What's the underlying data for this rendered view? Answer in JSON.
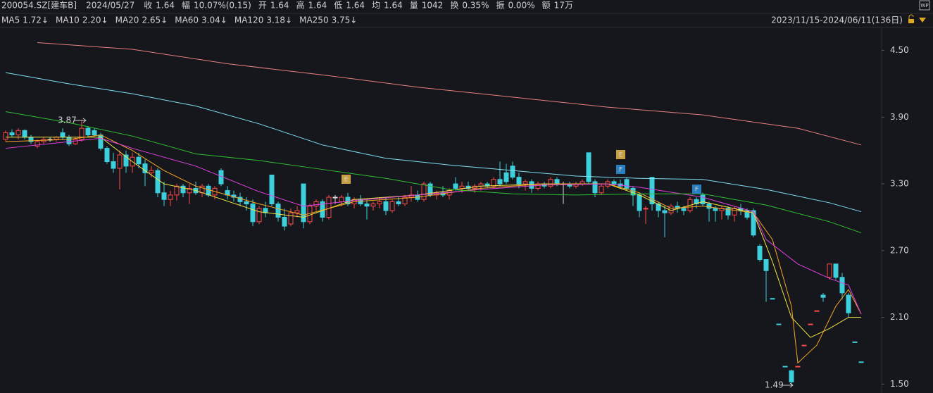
{
  "header": {
    "items": [
      {
        "label": "200054.SZ[建车B]"
      },
      {
        "label": "2024/05/27"
      },
      {
        "label": "收",
        "value": "1.64",
        "color": "#ff4a4a"
      },
      {
        "label": "幅",
        "value": "10.07%(0.15)",
        "color": "#ff4a4a"
      },
      {
        "label": "开",
        "value": "1.64",
        "color": "#ff4a4a"
      },
      {
        "label": "高",
        "value": "1.64",
        "color": "#ff4a4a"
      },
      {
        "label": "低",
        "value": "1.64",
        "color": "#ff4a4a"
      },
      {
        "label": "均",
        "value": "1.64",
        "color": "#ff4a4a"
      },
      {
        "label": "量",
        "value": "1042",
        "color": "#d8d8d8"
      },
      {
        "label": "换",
        "value": "0.35%",
        "color": "#d8d8d8"
      },
      {
        "label": "振",
        "value": "0.00%",
        "color": "#d8d8d8"
      },
      {
        "label": "额",
        "value": "17万",
        "color": "#d8d8d8"
      }
    ],
    "range": "2023/11/15-2024/06/11(136日)"
  },
  "chart_data": {
    "type": "candlestick",
    "ylim": [
      1.42,
      4.7
    ],
    "yticks": [
      {
        "value": 4.5,
        "label": "4.50"
      },
      {
        "value": 3.9,
        "label": "3.90"
      },
      {
        "value": 3.3,
        "label": "3.30"
      },
      {
        "value": 2.7,
        "label": "2.70"
      },
      {
        "value": 2.1,
        "label": "2.10"
      },
      {
        "value": 1.5,
        "label": "1.50"
      }
    ],
    "up_color": "#ff4a4a",
    "down_color": "#3dd0dc",
    "flat_color": "#e0e0e0",
    "ohlc": [
      [
        3.7,
        3.78,
        3.68,
        3.76
      ],
      [
        3.76,
        3.79,
        3.72,
        3.74
      ],
      [
        3.74,
        3.8,
        3.7,
        3.78
      ],
      [
        3.78,
        3.79,
        3.7,
        3.72
      ],
      [
        3.72,
        3.74,
        3.66,
        3.68
      ],
      [
        3.64,
        3.7,
        3.62,
        3.68
      ],
      [
        3.68,
        3.72,
        3.66,
        3.7
      ],
      [
        3.7,
        3.72,
        3.68,
        3.7
      ],
      [
        3.7,
        3.73,
        3.68,
        3.72
      ],
      [
        3.76,
        3.8,
        3.7,
        3.72
      ],
      [
        3.72,
        3.74,
        3.64,
        3.66
      ],
      [
        3.66,
        3.72,
        3.65,
        3.7
      ],
      [
        3.7,
        3.87,
        3.68,
        3.8
      ],
      [
        3.8,
        3.82,
        3.72,
        3.74
      ],
      [
        3.78,
        3.8,
        3.72,
        3.74
      ],
      [
        3.74,
        3.76,
        3.6,
        3.62
      ],
      [
        3.62,
        3.64,
        3.48,
        3.5
      ],
      [
        3.5,
        3.58,
        3.4,
        3.44
      ],
      [
        3.44,
        3.6,
        3.25,
        3.56
      ],
      [
        3.56,
        3.6,
        3.4,
        3.46
      ],
      [
        3.46,
        3.58,
        3.4,
        3.54
      ],
      [
        3.54,
        3.58,
        3.44,
        3.48
      ],
      [
        3.48,
        3.52,
        3.28,
        3.4
      ],
      [
        3.4,
        3.46,
        3.36,
        3.42
      ],
      [
        3.42,
        3.44,
        3.18,
        3.22
      ],
      [
        3.22,
        3.32,
        3.1,
        3.16
      ],
      [
        3.16,
        3.24,
        3.1,
        3.2
      ],
      [
        3.2,
        3.3,
        3.15,
        3.28
      ],
      [
        3.28,
        3.3,
        3.18,
        3.22
      ],
      [
        3.22,
        3.3,
        3.12,
        3.26
      ],
      [
        3.26,
        3.32,
        3.2,
        3.22
      ],
      [
        3.22,
        3.3,
        3.18,
        3.28
      ],
      [
        3.28,
        3.3,
        3.18,
        3.2
      ],
      [
        3.2,
        3.28,
        3.16,
        3.26
      ],
      [
        3.42,
        3.44,
        3.28,
        3.3
      ],
      [
        3.24,
        3.28,
        3.16,
        3.2
      ],
      [
        3.2,
        3.24,
        3.14,
        3.18
      ],
      [
        3.18,
        3.22,
        3.1,
        3.14
      ],
      [
        3.14,
        3.18,
        3.06,
        3.12
      ],
      [
        3.12,
        3.16,
        2.92,
        2.96
      ],
      [
        2.96,
        3.1,
        2.94,
        3.08
      ],
      [
        3.08,
        3.14,
        3.0,
        3.04
      ],
      [
        3.38,
        3.38,
        3.1,
        3.12
      ],
      [
        3.12,
        3.14,
        2.96,
        3.0
      ],
      [
        3.0,
        3.08,
        2.88,
        2.92
      ],
      [
        2.94,
        3.08,
        2.92,
        3.04
      ],
      [
        3.04,
        3.1,
        3.0,
        3.06
      ],
      [
        3.3,
        3.3,
        2.9,
        2.96
      ],
      [
        2.96,
        3.12,
        2.94,
        3.1
      ],
      [
        3.1,
        3.16,
        3.06,
        3.14
      ],
      [
        3.14,
        3.16,
        2.96,
        3.0
      ],
      [
        3.0,
        3.2,
        2.98,
        3.18
      ],
      [
        3.18,
        3.2,
        3.12,
        3.18
      ],
      [
        3.14,
        3.2,
        3.1,
        3.18
      ],
      [
        3.18,
        3.22,
        3.1,
        3.12
      ],
      [
        3.12,
        3.18,
        3.08,
        3.16
      ],
      [
        3.16,
        3.2,
        3.1,
        3.12
      ],
      [
        3.12,
        3.16,
        2.98,
        3.1
      ],
      [
        3.1,
        3.14,
        3.06,
        3.12
      ],
      [
        3.12,
        3.18,
        3.08,
        3.14
      ],
      [
        3.14,
        3.18,
        3.02,
        3.06
      ],
      [
        3.06,
        3.16,
        3.04,
        3.14
      ],
      [
        3.14,
        3.18,
        3.1,
        3.12
      ],
      [
        3.12,
        3.2,
        3.1,
        3.18
      ],
      [
        3.18,
        3.28,
        3.14,
        3.2
      ],
      [
        3.2,
        3.24,
        3.14,
        3.16
      ],
      [
        3.16,
        3.32,
        3.14,
        3.3
      ],
      [
        3.3,
        3.32,
        3.18,
        3.2
      ],
      [
        3.2,
        3.24,
        3.16,
        3.22
      ],
      [
        3.22,
        3.28,
        3.18,
        3.2
      ],
      [
        3.2,
        3.26,
        3.16,
        3.24
      ],
      [
        3.3,
        3.36,
        3.24,
        3.26
      ],
      [
        3.26,
        3.32,
        3.22,
        3.28
      ],
      [
        3.28,
        3.32,
        3.24,
        3.26
      ],
      [
        3.26,
        3.3,
        3.22,
        3.28
      ],
      [
        3.28,
        3.32,
        3.24,
        3.3
      ],
      [
        3.3,
        3.32,
        3.26,
        3.28
      ],
      [
        3.28,
        3.36,
        3.26,
        3.34
      ],
      [
        3.34,
        3.5,
        3.28,
        3.3
      ],
      [
        3.4,
        3.48,
        3.3,
        3.32
      ],
      [
        3.46,
        3.5,
        3.34,
        3.36
      ],
      [
        3.36,
        3.4,
        3.26,
        3.3
      ],
      [
        3.3,
        3.34,
        3.24,
        3.32
      ],
      [
        3.32,
        3.34,
        3.22,
        3.26
      ],
      [
        3.26,
        3.32,
        3.24,
        3.3
      ],
      [
        3.3,
        3.32,
        3.26,
        3.28
      ],
      [
        3.28,
        3.36,
        3.26,
        3.34
      ],
      [
        3.34,
        3.36,
        3.28,
        3.3
      ],
      [
        3.3,
        3.32,
        3.12,
        3.3
      ],
      [
        3.3,
        3.32,
        3.26,
        3.28
      ],
      [
        3.28,
        3.32,
        3.26,
        3.3
      ],
      [
        3.3,
        3.34,
        3.28,
        3.32
      ],
      [
        3.58,
        3.58,
        3.3,
        3.32
      ],
      [
        3.32,
        3.34,
        3.18,
        3.22
      ],
      [
        3.22,
        3.3,
        3.2,
        3.28
      ],
      [
        3.28,
        3.34,
        3.26,
        3.32
      ],
      [
        3.32,
        3.34,
        3.28,
        3.3
      ],
      [
        3.3,
        3.34,
        3.26,
        3.28
      ],
      [
        3.34,
        3.36,
        3.24,
        3.26
      ],
      [
        3.26,
        3.28,
        3.1,
        3.2
      ],
      [
        3.2,
        3.22,
        3.0,
        3.06
      ],
      [
        3.08,
        3.1,
        2.94,
        3.08
      ],
      [
        3.36,
        3.36,
        3.06,
        3.12
      ],
      [
        3.12,
        3.14,
        3.0,
        3.06
      ],
      [
        3.06,
        3.1,
        2.82,
        3.04
      ],
      [
        3.04,
        3.12,
        3.02,
        3.1
      ],
      [
        3.1,
        3.14,
        3.04,
        3.08
      ],
      [
        3.08,
        3.1,
        3.02,
        3.06
      ],
      [
        3.06,
        3.18,
        3.04,
        3.16
      ],
      [
        3.16,
        3.18,
        3.08,
        3.12
      ],
      [
        3.2,
        3.22,
        3.1,
        3.12
      ],
      [
        3.12,
        3.14,
        2.96,
        3.08
      ],
      [
        3.08,
        3.1,
        2.96,
        3.06
      ],
      [
        3.06,
        3.1,
        2.98,
        3.08
      ],
      [
        3.08,
        3.1,
        2.98,
        3.02
      ],
      [
        3.02,
        3.1,
        2.96,
        3.08
      ],
      [
        3.08,
        3.12,
        3.02,
        3.06
      ],
      [
        3.06,
        3.08,
        2.98,
        3.0
      ],
      [
        3.06,
        3.08,
        2.82,
        2.84
      ],
      [
        2.74,
        2.76,
        2.6,
        2.62
      ],
      [
        2.62,
        2.62,
        2.24,
        2.52
      ],
      [
        2.27,
        2.27,
        2.27,
        2.27
      ],
      [
        2.04,
        2.04,
        2.04,
        2.04
      ],
      [
        1.66,
        1.66,
        1.66,
        1.66
      ],
      [
        1.62,
        1.63,
        1.49,
        1.52
      ],
      [
        1.66,
        1.66,
        1.66,
        1.66
      ],
      [
        1.85,
        1.85,
        1.85,
        1.85
      ],
      [
        2.04,
        2.04,
        2.04,
        2.04
      ],
      [
        2.16,
        2.16,
        2.16,
        2.16
      ],
      [
        2.3,
        2.32,
        2.24,
        2.28
      ],
      [
        2.46,
        2.58,
        2.44,
        2.58
      ],
      [
        2.58,
        2.58,
        2.44,
        2.46
      ],
      [
        2.46,
        2.5,
        2.26,
        2.32
      ],
      [
        2.3,
        2.32,
        2.1,
        2.14
      ],
      [
        1.88,
        1.88,
        1.88,
        1.88
      ],
      [
        1.7,
        1.7,
        1.7,
        1.7
      ]
    ],
    "series": [
      {
        "name": "MA5",
        "legend_value": "1.72↓",
        "color": "#f0e442",
        "x": [
          0,
          10,
          15,
          20,
          25,
          30,
          40,
          47,
          55,
          65,
          75,
          85,
          95,
          100,
          105,
          110,
          118,
          121,
          124,
          127,
          130,
          133,
          135
        ],
        "values": [
          3.72,
          3.72,
          3.72,
          3.5,
          3.3,
          3.24,
          3.05,
          3.0,
          3.16,
          3.2,
          3.28,
          3.3,
          3.3,
          3.2,
          3.06,
          3.14,
          3.04,
          2.6,
          2.1,
          1.92,
          2.0,
          2.1,
          2.1
        ]
      },
      {
        "name": "MA10",
        "legend_value": "2.20↓",
        "color": "#f5a623",
        "x": [
          0,
          10,
          15,
          20,
          25,
          30,
          40,
          47,
          55,
          65,
          75,
          85,
          95,
          100,
          105,
          110,
          118,
          121,
          124,
          125,
          128,
          131,
          133,
          135
        ],
        "values": [
          3.68,
          3.7,
          3.74,
          3.6,
          3.42,
          3.28,
          3.12,
          3.02,
          3.14,
          3.18,
          3.26,
          3.3,
          3.3,
          3.22,
          3.08,
          3.1,
          3.04,
          2.8,
          2.2,
          1.69,
          1.85,
          2.2,
          2.35,
          2.13
        ]
      },
      {
        "name": "MA20",
        "legend_value": "2.65↓",
        "color": "#e040e0",
        "x": [
          0,
          10,
          15,
          20,
          30,
          40,
          47,
          55,
          65,
          75,
          85,
          95,
          100,
          110,
          118,
          120,
          125,
          130,
          133,
          135
        ],
        "values": [
          3.62,
          3.68,
          3.71,
          3.62,
          3.46,
          3.23,
          3.1,
          3.15,
          3.2,
          3.25,
          3.29,
          3.3,
          3.27,
          3.18,
          3.05,
          2.8,
          2.58,
          2.45,
          2.39,
          2.13
        ]
      },
      {
        "name": "MA60",
        "legend_value": "3.04↓",
        "color": "#30c030",
        "x": [
          0,
          10,
          20,
          30,
          40,
          50,
          60,
          70,
          80,
          90,
          100,
          110,
          120,
          130,
          135
        ],
        "values": [
          3.95,
          3.85,
          3.73,
          3.57,
          3.51,
          3.43,
          3.35,
          3.25,
          3.21,
          3.2,
          3.21,
          3.21,
          3.11,
          2.96,
          2.86
        ]
      },
      {
        "name": "MA120",
        "legend_value": "3.18↓",
        "color": "#7fdfef",
        "x": [
          0,
          10,
          20,
          30,
          40,
          50,
          60,
          70,
          80,
          90,
          100,
          110,
          120,
          130,
          135
        ],
        "values": [
          4.3,
          4.2,
          4.11,
          4.0,
          3.84,
          3.65,
          3.53,
          3.47,
          3.42,
          3.37,
          3.35,
          3.34,
          3.25,
          3.13,
          3.05
        ]
      },
      {
        "name": "MA250",
        "legend_value": "3.75↓",
        "color": "#e88080",
        "x": [
          5,
          20,
          35,
          50,
          65,
          80,
          95,
          110,
          125,
          135
        ],
        "values": [
          4.57,
          4.51,
          4.38,
          4.28,
          4.17,
          4.08,
          3.99,
          3.92,
          3.8,
          3.65
        ]
      }
    ],
    "annotations": [
      {
        "text": "3.87"
      },
      {
        "text": "1.49"
      }
    ],
    "event_markers": [
      "E",
      "E",
      "F",
      "F"
    ]
  }
}
